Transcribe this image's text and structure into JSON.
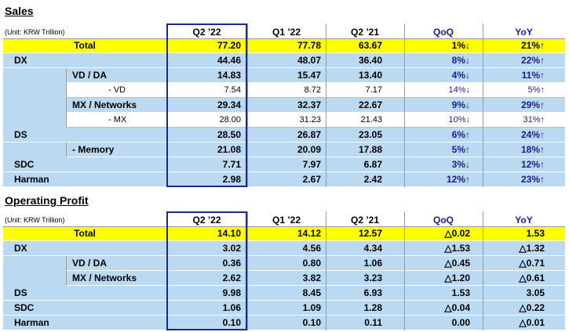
{
  "sections": [
    {
      "title": "Sales",
      "unit": "(Unit: KRW Trillion)",
      "columns": [
        "Q2 ’22",
        "Q1 ’22",
        "Q2 ’21",
        "QoQ",
        "YoY"
      ],
      "total": {
        "label": "Total",
        "values": [
          "77.20",
          "77.78",
          "63.67",
          "1%↓",
          "21%↑"
        ]
      },
      "rows": [
        {
          "label": "DX",
          "values": [
            "44.46",
            "48.07",
            "36.40",
            "8%↓",
            "22%↑"
          ],
          "children": [
            {
              "label": "VD / DA",
              "values": [
                "14.83",
                "15.47",
                "13.40",
                "4%↓",
                "11%↑"
              ],
              "children": [
                {
                  "label": "- VD",
                  "values": [
                    "7.54",
                    "8.72",
                    "7.17",
                    "14%↓",
                    "5%↑"
                  ]
                }
              ]
            },
            {
              "label": "MX / Networks",
              "values": [
                "29.34",
                "32.37",
                "22.67",
                "9%↓",
                "29%↑"
              ],
              "children": [
                {
                  "label": "- MX",
                  "values": [
                    "28.00",
                    "31.23",
                    "21.43",
                    "10%↓",
                    "31%↑"
                  ]
                }
              ]
            }
          ]
        },
        {
          "label": "DS",
          "values": [
            "28.50",
            "26.87",
            "23.05",
            "6%↑",
            "24%↑"
          ],
          "children": [
            {
              "label": "- Memory",
              "values": [
                "21.08",
                "20.09",
                "17.88",
                "5%↑",
                "18%↑"
              ]
            }
          ]
        },
        {
          "label": "SDC",
          "values": [
            "7.71",
            "7.97",
            "6.87",
            "3%↓",
            "12%↑"
          ]
        },
        {
          "label": "Harman",
          "values": [
            "2.98",
            "2.67",
            "2.42",
            "12%↑",
            "23%↑"
          ]
        }
      ]
    },
    {
      "title": "Operating Profit",
      "unit": "(Unit: KRW Trillion)",
      "columns": [
        "Q2 ’22",
        "Q1 ’22",
        "Q2 ’21",
        "QoQ",
        "YoY"
      ],
      "total": {
        "label": "Total",
        "values": [
          "14.10",
          "14.12",
          "12.57",
          "△0.02",
          "1.53"
        ]
      },
      "rows": [
        {
          "label": "DX",
          "values": [
            "3.02",
            "4.56",
            "4.34",
            "△1.53",
            "△1.32"
          ],
          "children": [
            {
              "label": "VD / DA",
              "values": [
                "0.36",
                "0.80",
                "1.06",
                "△0.45",
                "△0.71"
              ]
            },
            {
              "label": "MX / Networks",
              "values": [
                "2.62",
                "3.82",
                "3.23",
                "△1.20",
                "△0.61"
              ]
            }
          ]
        },
        {
          "label": "DS",
          "values": [
            "9.98",
            "8.45",
            "6.93",
            "1.53",
            "3.05"
          ]
        },
        {
          "label": "SDC",
          "values": [
            "1.06",
            "1.09",
            "1.28",
            "△0.04",
            "△0.22"
          ]
        },
        {
          "label": "Harman",
          "values": [
            "0.10",
            "0.10",
            "0.11",
            "0.00",
            "△0.01"
          ]
        }
      ]
    }
  ]
}
